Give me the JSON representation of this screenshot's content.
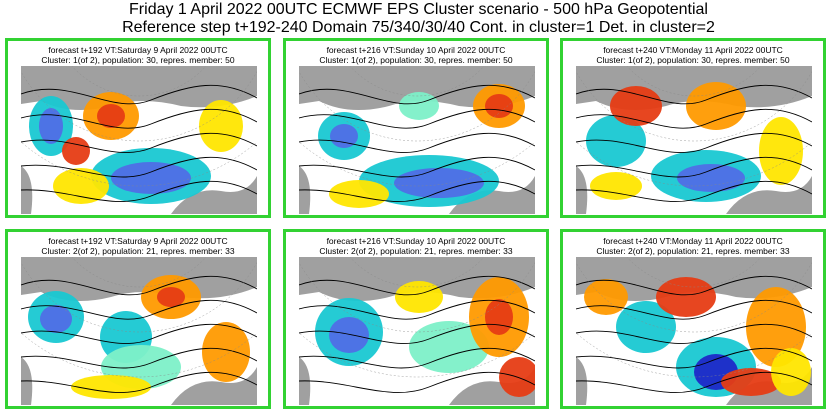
{
  "header": {
    "line1": "Friday 1 April 2022 00UTC ECMWF EPS Cluster scenario - 500 hPa Geopotential",
    "line2": "Reference step t+192-240 Domain 75/340/30/40 Cont. in cluster=1 Det. in cluster=2"
  },
  "colors": {
    "panel_border": "#32d232",
    "land": "#a0a0a0",
    "positive_strong": "#e63c14",
    "positive_mid": "#ff9a00",
    "positive_weak": "#ffe600",
    "negative_weak": "#7df0c8",
    "negative_mid": "#19c8d2",
    "negative_strong": "#4f6ee6",
    "negative_extreme": "#1e28c8",
    "contour": "#000000"
  },
  "panels": [
    {
      "caption": "forecast t+192 VT:Saturday 9 April 2022 00UTC",
      "cluster": "Cluster: 1(of 2), population: 30, repres. member: 50"
    },
    {
      "caption": "forecast t+216 VT:Sunday 10 April 2022 00UTC",
      "cluster": "Cluster: 1(of 2), population: 30, repres. member: 50"
    },
    {
      "caption": "forecast t+240 VT:Monday 11 April 2022 00UTC",
      "cluster": "Cluster: 1(of 2), population: 30, repres. member: 50"
    },
    {
      "caption": "forecast t+192 VT:Saturday 9 April 2022 00UTC",
      "cluster": "Cluster: 2(of 2), population: 21, repres. member: 33"
    },
    {
      "caption": "forecast t+216 VT:Sunday 10 April 2022 00UTC",
      "cluster": "Cluster: 2(of 2), population: 21, repres. member: 33"
    },
    {
      "caption": "forecast t+240 VT:Monday 11 April 2022 00UTC",
      "cluster": "Cluster: 2(of 2), population: 21, repres. member: 33"
    }
  ]
}
